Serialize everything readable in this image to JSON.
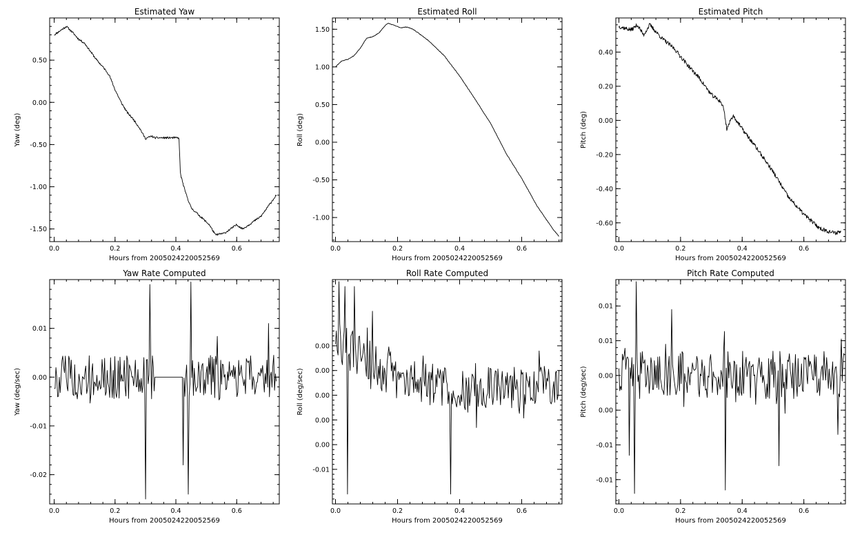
{
  "figure": {
    "background": "#ffffff",
    "foreground": "#000000"
  },
  "chart_data": [
    {
      "type": "line",
      "title": "Estimated Yaw",
      "xlabel": "Hours from 2005024220052569",
      "ylabel": "Yaw (deg)",
      "xlim": [
        -0.015,
        0.74
      ],
      "ylim": [
        -1.65,
        1.0
      ],
      "xticks": [
        "0.0",
        "0.2",
        "0.4",
        "0.6"
      ],
      "xtick_values": [
        0.0,
        0.2,
        0.4,
        0.6
      ],
      "yticks": [
        "-1.50",
        "-1.00",
        "-0.50",
        "0.00",
        "0.50"
      ],
      "ytick_values": [
        -1.5,
        -1.0,
        -0.5,
        0.0,
        0.5
      ],
      "series": [
        {
          "style": "jagged",
          "seed": 11,
          "noise": 0.012,
          "points": [
            [
              0.0,
              0.8
            ],
            [
              0.02,
              0.85
            ],
            [
              0.04,
              0.9
            ],
            [
              0.06,
              0.83
            ],
            [
              0.08,
              0.75
            ],
            [
              0.1,
              0.7
            ],
            [
              0.12,
              0.6
            ],
            [
              0.14,
              0.5
            ],
            [
              0.16,
              0.42
            ],
            [
              0.18,
              0.33
            ],
            [
              0.2,
              0.15
            ],
            [
              0.22,
              0.0
            ],
            [
              0.24,
              -0.12
            ],
            [
              0.26,
              -0.2
            ],
            [
              0.28,
              -0.3
            ],
            [
              0.3,
              -0.43
            ],
            [
              0.32,
              -0.4
            ],
            [
              0.33,
              -0.42
            ],
            [
              0.41,
              -0.42
            ],
            [
              0.415,
              -0.85
            ],
            [
              0.43,
              -1.05
            ],
            [
              0.45,
              -1.25
            ],
            [
              0.48,
              -1.35
            ],
            [
              0.51,
              -1.45
            ],
            [
              0.53,
              -1.57
            ],
            [
              0.56,
              -1.55
            ],
            [
              0.58,
              -1.5
            ],
            [
              0.6,
              -1.45
            ],
            [
              0.62,
              -1.5
            ],
            [
              0.64,
              -1.45
            ],
            [
              0.66,
              -1.4
            ],
            [
              0.68,
              -1.35
            ],
            [
              0.7,
              -1.25
            ],
            [
              0.72,
              -1.15
            ],
            [
              0.73,
              -1.1
            ]
          ]
        }
      ]
    },
    {
      "type": "line",
      "title": "Estimated Roll",
      "xlabel": "Hours from 2005024220052569",
      "ylabel": "Roll (deg)",
      "xlim": [
        -0.01,
        0.73
      ],
      "ylim": [
        -1.32,
        1.65
      ],
      "xticks": [
        "0.0",
        "0.2",
        "0.4",
        "0.6"
      ],
      "xtick_values": [
        0.0,
        0.2,
        0.4,
        0.6
      ],
      "yticks": [
        "-1.00",
        "-0.50",
        "0.00",
        "0.50",
        "1.00",
        "1.50"
      ],
      "ytick_values": [
        -1.0,
        -0.5,
        0.0,
        0.5,
        1.0,
        1.5
      ],
      "series": [
        {
          "style": "jagged",
          "seed": 23,
          "noise": 0.004,
          "points": [
            [
              0.0,
              1.0
            ],
            [
              0.02,
              1.08
            ],
            [
              0.04,
              1.1
            ],
            [
              0.06,
              1.15
            ],
            [
              0.08,
              1.25
            ],
            [
              0.1,
              1.38
            ],
            [
              0.12,
              1.4
            ],
            [
              0.14,
              1.45
            ],
            [
              0.16,
              1.55
            ],
            [
              0.17,
              1.58
            ],
            [
              0.19,
              1.55
            ],
            [
              0.21,
              1.52
            ],
            [
              0.23,
              1.53
            ],
            [
              0.25,
              1.5
            ],
            [
              0.3,
              1.35
            ],
            [
              0.35,
              1.15
            ],
            [
              0.4,
              0.88
            ],
            [
              0.45,
              0.57
            ],
            [
              0.5,
              0.25
            ],
            [
              0.55,
              -0.15
            ],
            [
              0.6,
              -0.48
            ],
            [
              0.65,
              -0.85
            ],
            [
              0.7,
              -1.15
            ],
            [
              0.72,
              -1.25
            ]
          ]
        }
      ]
    },
    {
      "type": "line",
      "title": "Estimated Pitch",
      "xlabel": "Hours from 2005024220052569",
      "ylabel": "Pitch (deg)",
      "xlim": [
        -0.01,
        0.735
      ],
      "ylim": [
        -0.71,
        0.6
      ],
      "xticks": [
        "0.0",
        "0.2",
        "0.4",
        "0.6"
      ],
      "xtick_values": [
        0.0,
        0.2,
        0.4,
        0.6
      ],
      "yticks": [
        "-0.60",
        "-0.40",
        "-0.20",
        "0.00",
        "0.20",
        "0.40"
      ],
      "ytick_values": [
        -0.6,
        -0.4,
        -0.2,
        0.0,
        0.2,
        0.4
      ],
      "series": [
        {
          "style": "jagged",
          "seed": 37,
          "noise": 0.012,
          "points": [
            [
              0.0,
              0.55
            ],
            [
              0.04,
              0.53
            ],
            [
              0.06,
              0.56
            ],
            [
              0.08,
              0.5
            ],
            [
              0.1,
              0.56
            ],
            [
              0.14,
              0.48
            ],
            [
              0.18,
              0.42
            ],
            [
              0.22,
              0.33
            ],
            [
              0.26,
              0.25
            ],
            [
              0.3,
              0.15
            ],
            [
              0.33,
              0.11
            ],
            [
              0.34,
              0.07
            ],
            [
              0.35,
              -0.05
            ],
            [
              0.37,
              0.03
            ],
            [
              0.4,
              -0.05
            ],
            [
              0.45,
              -0.17
            ],
            [
              0.5,
              -0.3
            ],
            [
              0.55,
              -0.45
            ],
            [
              0.6,
              -0.55
            ],
            [
              0.65,
              -0.63
            ],
            [
              0.68,
              -0.65
            ],
            [
              0.7,
              -0.66
            ],
            [
              0.72,
              -0.65
            ]
          ]
        }
      ]
    },
    {
      "type": "line",
      "title": "Yaw Rate Computed",
      "xlabel": "Hours from 2005024220052569",
      "ylabel": "Yaw (deg/sec)",
      "xlim": [
        -0.015,
        0.74
      ],
      "ylim": [
        -0.026,
        0.02
      ],
      "xticks": [
        "0.0",
        "0.2",
        "0.4",
        "0.6"
      ],
      "xtick_values": [
        0.0,
        0.2,
        0.4,
        0.6
      ],
      "yticks": [
        "-0.02",
        "-0.01",
        "0.00",
        "0.01"
      ],
      "ytick_values": [
        -0.02,
        -0.01,
        0.0,
        0.01
      ],
      "series": [
        {
          "style": "noise",
          "seed": 5,
          "amp": 0.0045,
          "flat": [
            0.33,
            0.425
          ],
          "spikes": [
            [
              0.3,
              -0.025
            ],
            [
              0.315,
              0.019
            ],
            [
              0.425,
              -0.018
            ],
            [
              0.44,
              -0.024
            ],
            [
              0.45,
              0.0195
            ],
            [
              0.705,
              0.011
            ]
          ],
          "points": [
            [
              0.0,
              0.0
            ],
            [
              0.73,
              0.0
            ]
          ]
        }
      ]
    },
    {
      "type": "line",
      "title": "Roll Rate Computed",
      "xlabel": "Hours from 2005024220052569",
      "ylabel": "Roll (deg/sec)",
      "xlim": [
        -0.01,
        0.73
      ],
      "ylim": [
        -0.0135,
        0.0092
      ],
      "xticks": [
        "0.0",
        "0.2",
        "0.4",
        "0.6"
      ],
      "xtick_values": [
        0.0,
        0.2,
        0.4,
        0.6
      ],
      "yticks": [
        "-0.01",
        "0.00",
        "0.00",
        "0.00",
        "0.00",
        "0.00"
      ],
      "ytick_values": [
        -0.01,
        -0.0075,
        -0.005,
        -0.0025,
        0.0,
        0.0025
      ],
      "series": [
        {
          "style": "noise",
          "seed": 29,
          "amp": 0.0022,
          "spikes": [
            [
              0.01,
              0.009
            ],
            [
              0.03,
              0.0085
            ],
            [
              0.04,
              -0.0125
            ],
            [
              0.06,
              0.0085
            ],
            [
              0.37,
              -0.0125
            ],
            [
              0.12,
              0.006
            ]
          ],
          "points": [
            [
              0.0,
              0.003
            ],
            [
              0.1,
              0.0012
            ],
            [
              0.2,
              -0.001
            ],
            [
              0.4,
              -0.0018
            ],
            [
              0.6,
              -0.0016
            ],
            [
              0.72,
              -0.0012
            ]
          ]
        }
      ]
    },
    {
      "type": "line",
      "title": "Pitch Rate Computed",
      "xlabel": "Hours from 2005024220052569",
      "ylabel": "Pitch (deg/sec)",
      "xlim": [
        -0.01,
        0.735
      ],
      "ylim": [
        -0.0185,
        0.0138
      ],
      "xticks": [
        "0.0",
        "0.2",
        "0.4",
        "0.6"
      ],
      "xtick_values": [
        0.0,
        0.2,
        0.4,
        0.6
      ],
      "yticks": [
        "-0.01",
        "-0.01",
        "0.00",
        "0.00",
        "0.01",
        "0.01"
      ],
      "ytick_values": [
        -0.015,
        -0.01,
        -0.005,
        0.0,
        0.005,
        0.01
      ],
      "series": [
        {
          "style": "noise",
          "seed": 41,
          "amp": 0.0035,
          "spikes": [
            [
              0.05,
              -0.017
            ],
            [
              0.055,
              0.0135
            ],
            [
              0.035,
              -0.0115
            ],
            [
              0.17,
              0.0095
            ],
            [
              0.345,
              -0.0165
            ],
            [
              0.52,
              -0.013
            ],
            [
              0.71,
              -0.0085
            ]
          ],
          "points": [
            [
              0.0,
              0.0
            ],
            [
              0.73,
              0.0
            ]
          ]
        }
      ]
    }
  ]
}
